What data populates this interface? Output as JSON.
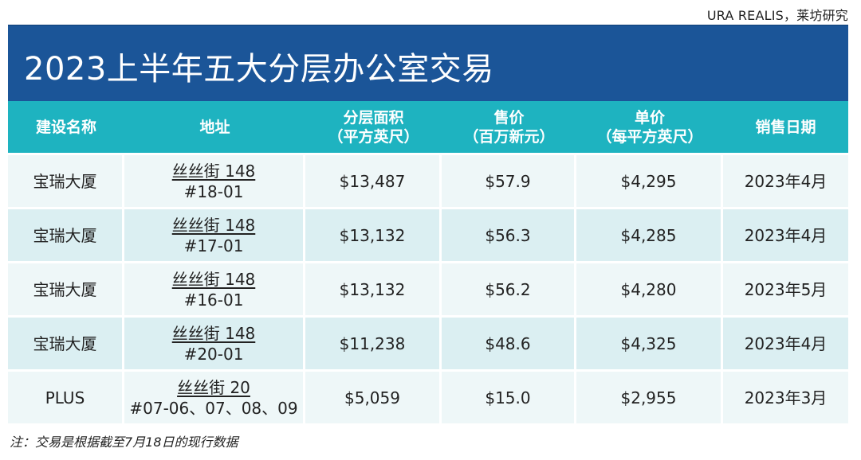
{
  "source": "URA REALIS，莱坊研究",
  "title": "2023上半年五大分层办公室交易",
  "headers": {
    "building": "建设名称",
    "address": "地址",
    "area_l1": "分层面积",
    "area_l2": "（平方英尺）",
    "price_l1": "售价",
    "price_l2": "（百万新元）",
    "unit_l1": "单价",
    "unit_l2": "（每平方英尺）",
    "date": "销售日期"
  },
  "rows": [
    {
      "building": "宝瑞大厦",
      "addr1": "丝丝街 148",
      "addr2": "#18-01",
      "area": "$13,487",
      "price": "$57.9",
      "unit": "$4,295",
      "date": "2023年4月"
    },
    {
      "building": "宝瑞大厦",
      "addr1": "丝丝街 148",
      "addr2": "#17-01",
      "area": "$13,132",
      "price": "$56.3",
      "unit": "$4,285",
      "date": "2023年4月"
    },
    {
      "building": "宝瑞大厦",
      "addr1": "丝丝街 148",
      "addr2": "#16-01",
      "area": "$13,132",
      "price": "$56.2",
      "unit": "$4,280",
      "date": "2023年5月"
    },
    {
      "building": "宝瑞大厦",
      "addr1": "丝丝街 148",
      "addr2": "#20-01",
      "area": "$11,238",
      "price": "$48.6",
      "unit": "$4,325",
      "date": "2023年4月"
    },
    {
      "building": "PLUS",
      "addr1": "丝丝街 20",
      "addr2": "#07-06、07、08、09",
      "area": "$5,059",
      "price": "$15.0",
      "unit": "$2,955",
      "date": "2023年3月"
    }
  ],
  "footnote": "注：交易是根据截至7月18日的现行数据",
  "colors": {
    "title_bg": "#1b5598",
    "header_bg": "#1eb3c0",
    "row_light": "#eef7f8",
    "row_dark": "#dbeff2"
  }
}
